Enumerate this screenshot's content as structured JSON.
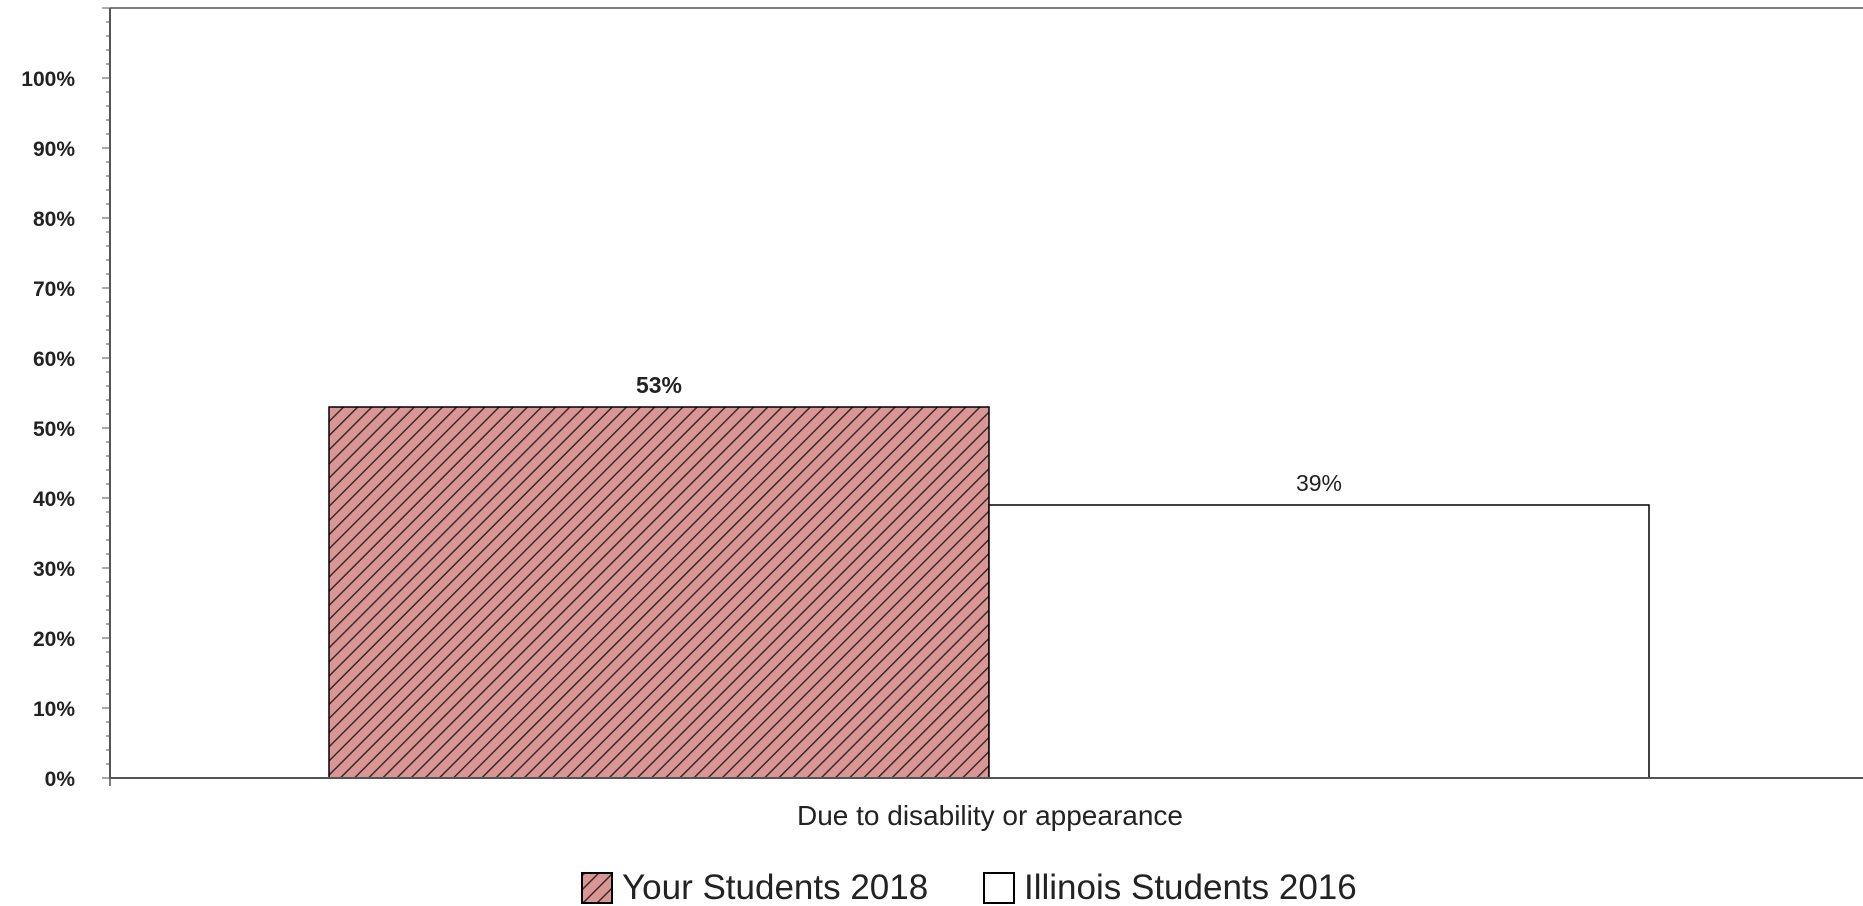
{
  "chart_data": {
    "type": "bar",
    "categories": [
      "Due to disability or appearance"
    ],
    "series": [
      {
        "name": "Your Students 2018",
        "values": [
          53
        ],
        "value_label": "53%",
        "fill": "#d99694",
        "pattern": "diagonal-hatch",
        "label_bold": true
      },
      {
        "name": "Illinois Students 2016",
        "values": [
          39
        ],
        "value_label": "39%",
        "fill": "#ffffff",
        "pattern": "none",
        "label_bold": false
      }
    ],
    "ylim": [
      0,
      110
    ],
    "ytick_values": [
      0,
      10,
      20,
      30,
      40,
      50,
      60,
      70,
      80,
      90,
      100
    ],
    "ytick_labels": [
      "0%",
      "10%",
      "20%",
      "30%",
      "40%",
      "50%",
      "60%",
      "70%",
      "80%",
      "90%",
      "100%"
    ],
    "grid": false,
    "legend_position": "bottom-center",
    "colors": {
      "axis": "#555555",
      "bar_outline": "#000000",
      "hatch_line": "#3a2a2a"
    }
  }
}
